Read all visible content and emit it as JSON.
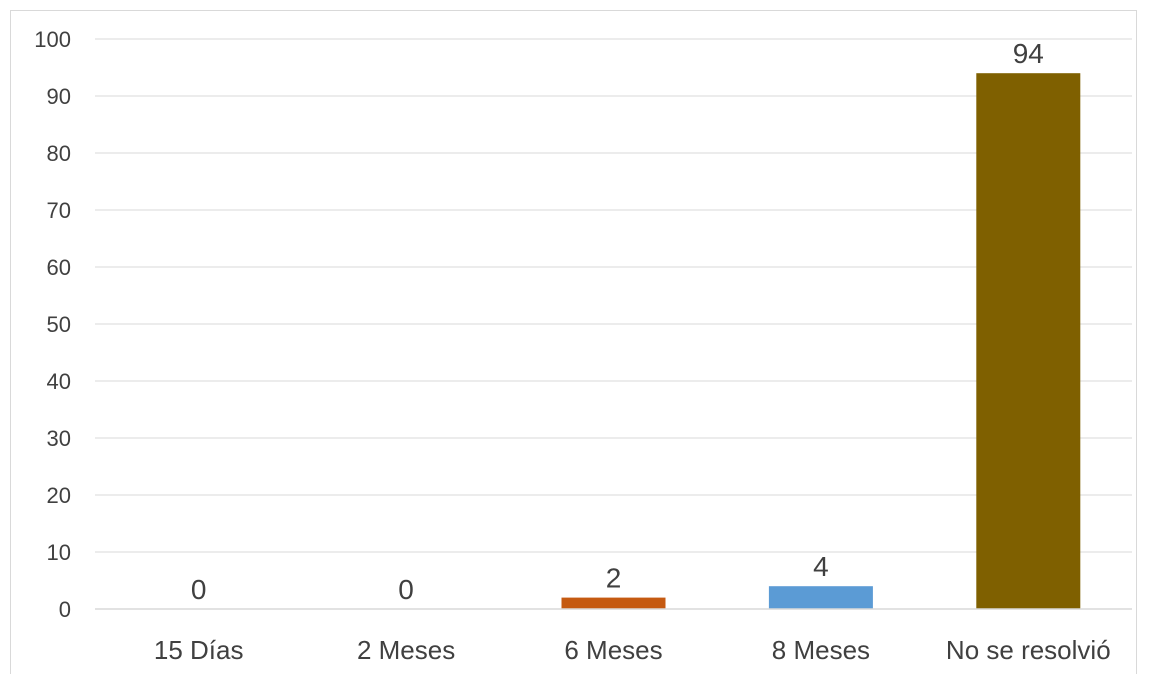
{
  "chart_data": {
    "type": "bar",
    "categories": [
      "15 Días",
      "2 Meses",
      "6 Meses",
      "8 Meses",
      "No se resolvió"
    ],
    "values": [
      0,
      0,
      2,
      4,
      94
    ],
    "colors": [
      "#4472c4",
      "#ed7d31",
      "#c55a11",
      "#5b9bd5",
      "#7f6000"
    ],
    "data_labels": [
      "0",
      "0",
      "2",
      "4",
      "94"
    ],
    "ylim": [
      0,
      100
    ],
    "yticks": [
      0,
      10,
      20,
      30,
      40,
      50,
      60,
      70,
      80,
      90,
      100
    ],
    "grid": true,
    "legend": false,
    "title": "",
    "xlabel": "",
    "ylabel": ""
  }
}
